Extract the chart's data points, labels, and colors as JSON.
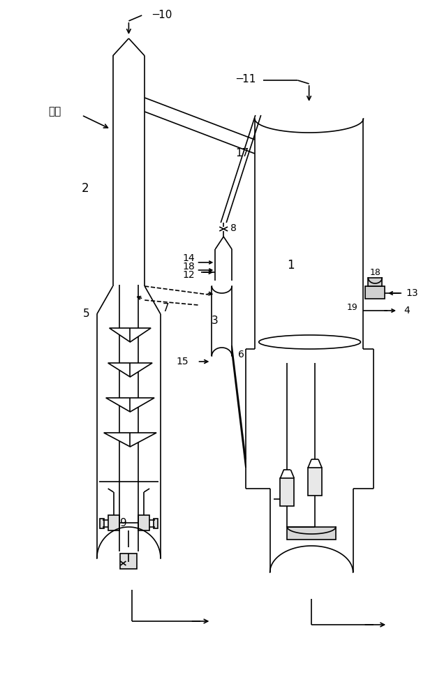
{
  "bg": "#ffffff",
  "lc": "#000000",
  "lw": 1.2,
  "fig_w": 6.03,
  "fig_h": 10.0,
  "labels": {
    "n1": "1",
    "n2": "2",
    "n3": "3",
    "n4": "4",
    "n5": "5",
    "n6": "6",
    "n7": "7",
    "n8": "8",
    "n9": "9",
    "n10": "10",
    "n11": "11",
    "n12": "12",
    "n13": "13",
    "n14": "14",
    "n15": "15",
    "n17": "17",
    "n18": "18",
    "n19": "19",
    "yuan_liao": "原料"
  }
}
